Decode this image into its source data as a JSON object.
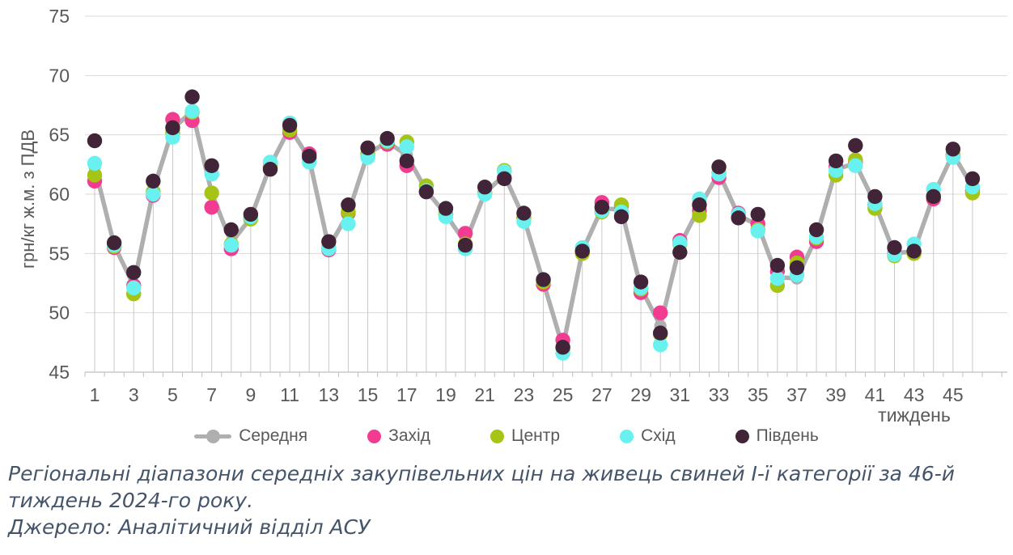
{
  "figure": {
    "y_axis_title": "грн/кг ж.м. з ПДВ",
    "x_axis_title": "тиждень",
    "y_ticks": [
      75,
      70,
      65,
      60,
      55,
      50,
      45
    ],
    "x_tick_labels": [
      "1",
      "3",
      "5",
      "7",
      "9",
      "11",
      "13",
      "15",
      "17",
      "19",
      "21",
      "23",
      "25",
      "27",
      "29",
      "31",
      "33",
      "35",
      "37",
      "39",
      "41",
      "43",
      "45"
    ]
  },
  "chart_data": {
    "type": "line",
    "title": "",
    "xlabel": "тиждень",
    "ylabel": "грн/кг ж.м. з ПДВ",
    "ylim": [
      45,
      75
    ],
    "xlim_weeks": [
      1,
      46
    ],
    "grid": "horizontal",
    "legend_position": "bottom",
    "x": [
      1,
      2,
      3,
      4,
      5,
      6,
      7,
      8,
      9,
      10,
      11,
      12,
      13,
      14,
      15,
      16,
      17,
      18,
      19,
      20,
      21,
      22,
      23,
      24,
      25,
      26,
      27,
      28,
      29,
      30,
      31,
      32,
      33,
      34,
      35,
      36,
      37,
      38,
      39,
      40,
      41,
      42,
      43,
      44,
      45,
      46
    ],
    "series": [
      {
        "name": "Середня",
        "key": "serednya",
        "style": "line-with-markers",
        "color": "#AFAFAF",
        "values": [
          62.3,
          55.7,
          52.3,
          60.3,
          65.5,
          67.0,
          60.1,
          55.9,
          58.0,
          62.4,
          65.6,
          63.0,
          55.5,
          58.4,
          63.4,
          64.4,
          63.3,
          60.3,
          58.3,
          55.9,
          60.1,
          61.6,
          58.0,
          52.6,
          47.1,
          55.2,
          58.8,
          58.7,
          52.1,
          48.9,
          55.7,
          58.9,
          61.8,
          58.2,
          57.4,
          53.0,
          52.9,
          56.4,
          62.1,
          62.6,
          59.2,
          55.0,
          55.2,
          59.9,
          63.4,
          60.6
        ]
      },
      {
        "name": "Захід",
        "key": "zakhid",
        "style": "scatter",
        "color": "#F13C91",
        "values": [
          61.1,
          55.5,
          52.3,
          59.9,
          66.3,
          66.2,
          58.9,
          55.4,
          58.0,
          62.3,
          65.2,
          63.4,
          55.3,
          58.4,
          63.2,
          64.2,
          62.4,
          60.2,
          58.3,
          56.7,
          60.1,
          61.4,
          58.0,
          52.4,
          47.7,
          55.2,
          59.3,
          59.0,
          51.7,
          50.0,
          56.1,
          58.6,
          61.4,
          58.4,
          57.5,
          53.5,
          54.7,
          56.0,
          62.3,
          62.7,
          59.1,
          55.0,
          55.1,
          59.6,
          63.3,
          60.3
        ]
      },
      {
        "name": "Центр",
        "key": "tsentr",
        "style": "scatter",
        "color": "#A5C413",
        "values": [
          61.6,
          55.6,
          51.6,
          60.2,
          65.2,
          66.9,
          60.1,
          55.8,
          57.9,
          62.4,
          65.4,
          63.0,
          55.5,
          58.5,
          63.4,
          64.4,
          64.4,
          60.7,
          58.3,
          55.8,
          60.1,
          62.0,
          58.0,
          52.6,
          47.0,
          55.0,
          58.5,
          59.1,
          52.0,
          48.2,
          55.8,
          58.2,
          61.8,
          58.1,
          57.0,
          52.3,
          54.2,
          56.3,
          61.6,
          62.9,
          58.8,
          54.8,
          55.0,
          59.8,
          63.3,
          60.1
        ]
      },
      {
        "name": "Схід",
        "key": "skhid",
        "style": "scatter",
        "color": "#68F1EF",
        "values": [
          62.6,
          55.7,
          52.1,
          60.0,
          64.8,
          67.0,
          61.7,
          55.7,
          58.1,
          62.7,
          66.0,
          62.7,
          55.4,
          57.5,
          63.1,
          64.5,
          64.0,
          60.3,
          58.1,
          55.4,
          60.0,
          61.9,
          57.7,
          52.8,
          46.6,
          55.5,
          58.6,
          58.5,
          52.1,
          47.3,
          55.9,
          59.6,
          61.7,
          58.3,
          56.9,
          52.9,
          53.2,
          56.4,
          62.0,
          62.4,
          59.2,
          54.9,
          55.8,
          60.4,
          63.1,
          60.6
        ]
      },
      {
        "name": "Південь",
        "key": "pivden",
        "style": "scatter",
        "color": "#412438",
        "values": [
          64.5,
          55.9,
          53.4,
          61.1,
          65.6,
          68.2,
          62.4,
          57.0,
          58.3,
          62.1,
          65.8,
          63.2,
          56.0,
          59.1,
          63.9,
          64.7,
          62.8,
          60.2,
          58.8,
          55.7,
          60.6,
          61.3,
          58.4,
          52.8,
          47.1,
          55.2,
          58.9,
          58.1,
          52.6,
          48.3,
          55.1,
          59.1,
          62.3,
          58.0,
          58.3,
          54.0,
          53.8,
          57.0,
          62.8,
          64.1,
          59.8,
          55.5,
          55.2,
          59.8,
          63.8,
          61.3
        ]
      }
    ]
  },
  "style_colors": {
    "gridline": "#D9D9D9",
    "axis_line": "#BFBFBF",
    "drop_line": "#C9C9C9",
    "axis_text": "#595959",
    "caption_text": "#44546A"
  },
  "caption": {
    "text": "Регіональні діапазони середніх закупівельних цін на живець свиней І-ї категорії за 46-й тиждень 2024-го року.",
    "source": "Джерело: Аналітичний відділ АСУ"
  }
}
